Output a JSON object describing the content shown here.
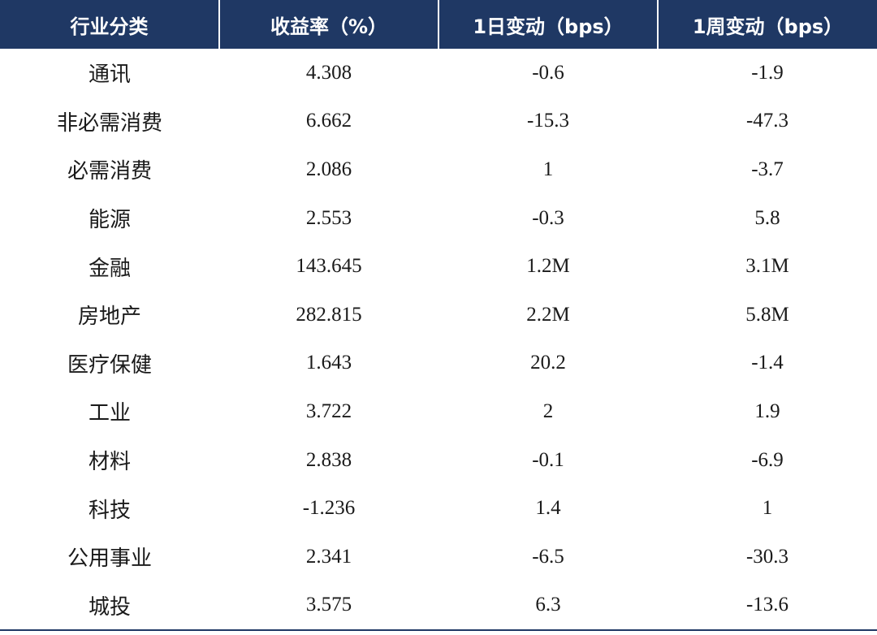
{
  "table": {
    "headers": [
      "行业分类",
      "收益率（%）",
      "1日变动（bps）",
      "1周变动（bps）"
    ],
    "rows": [
      {
        "sector": "通讯",
        "yield": "4.308",
        "d1": "-0.6",
        "w1": "-1.9"
      },
      {
        "sector": "非必需消费",
        "yield": "6.662",
        "d1": "-15.3",
        "w1": "-47.3"
      },
      {
        "sector": "必需消费",
        "yield": "2.086",
        "d1": "1",
        "w1": "-3.7"
      },
      {
        "sector": "能源",
        "yield": "2.553",
        "d1": "-0.3",
        "w1": "5.8"
      },
      {
        "sector": "金融",
        "yield": "143.645",
        "d1": "1.2M",
        "w1": "3.1M"
      },
      {
        "sector": "房地产",
        "yield": "282.815",
        "d1": "2.2M",
        "w1": "5.8M"
      },
      {
        "sector": "医疗保健",
        "yield": "1.643",
        "d1": "20.2",
        "w1": "-1.4"
      },
      {
        "sector": "工业",
        "yield": "3.722",
        "d1": "2",
        "w1": "1.9"
      },
      {
        "sector": "材料",
        "yield": "2.838",
        "d1": "-0.1",
        "w1": "-6.9"
      },
      {
        "sector": "科技",
        "yield": "-1.236",
        "d1": "1.4",
        "w1": "1"
      },
      {
        "sector": "公用事业",
        "yield": "2.341",
        "d1": "-6.5",
        "w1": "-30.3"
      },
      {
        "sector": "城投",
        "yield": "3.575",
        "d1": "6.3",
        "w1": "-13.6"
      }
    ]
  },
  "colors": {
    "header_bg": "#1f3864",
    "header_text": "#ffffff",
    "body_text": "#1a1a1a",
    "rule": "#1f3864"
  }
}
